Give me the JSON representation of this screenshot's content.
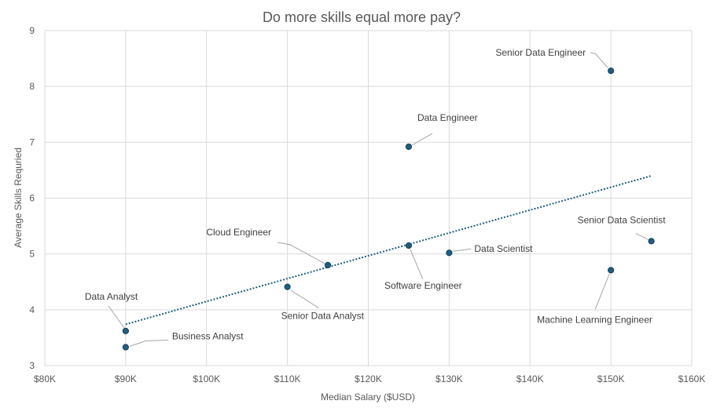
{
  "chart_data": {
    "type": "scatter",
    "title": "Do more skills equal more pay?",
    "xlabel": "Median Salary ($USD)",
    "ylabel": "Average Skills Requried",
    "xlim": [
      80000,
      160000
    ],
    "ylim": [
      3,
      9
    ],
    "x_ticks": [
      80000,
      90000,
      100000,
      110000,
      120000,
      130000,
      140000,
      150000,
      160000
    ],
    "x_tick_labels": [
      "$80K",
      "$90K",
      "$100K",
      "$110K",
      "$120K",
      "$130K",
      "$140K",
      "$150K",
      "$160K"
    ],
    "y_ticks": [
      3,
      4,
      5,
      6,
      7,
      8,
      9
    ],
    "y_tick_labels": [
      "3",
      "4",
      "5",
      "6",
      "7",
      "8",
      "9"
    ],
    "grid": true,
    "point_color": "#1f5f7f",
    "points": [
      {
        "label": "Data Analyst",
        "x": 90000,
        "y": 3.62
      },
      {
        "label": "Business Analyst",
        "x": 90000,
        "y": 3.33
      },
      {
        "label": "Senior Data Analyst",
        "x": 110000,
        "y": 4.41
      },
      {
        "label": "Cloud Engineer",
        "x": 115000,
        "y": 4.8
      },
      {
        "label": "Software Engineer",
        "x": 125000,
        "y": 5.15
      },
      {
        "label": "Data Engineer",
        "x": 125000,
        "y": 6.92
      },
      {
        "label": "Data Scientist",
        "x": 130000,
        "y": 5.02
      },
      {
        "label": "Machine Learning Engineer",
        "x": 150000,
        "y": 4.71
      },
      {
        "label": "Senior Data Engineer",
        "x": 150000,
        "y": 8.28
      },
      {
        "label": "Senior Data Scientist",
        "x": 155000,
        "y": 5.23
      }
    ],
    "trendline": {
      "style": "dotted",
      "x": [
        90000,
        155000
      ],
      "y": [
        3.74,
        6.4
      ]
    }
  }
}
